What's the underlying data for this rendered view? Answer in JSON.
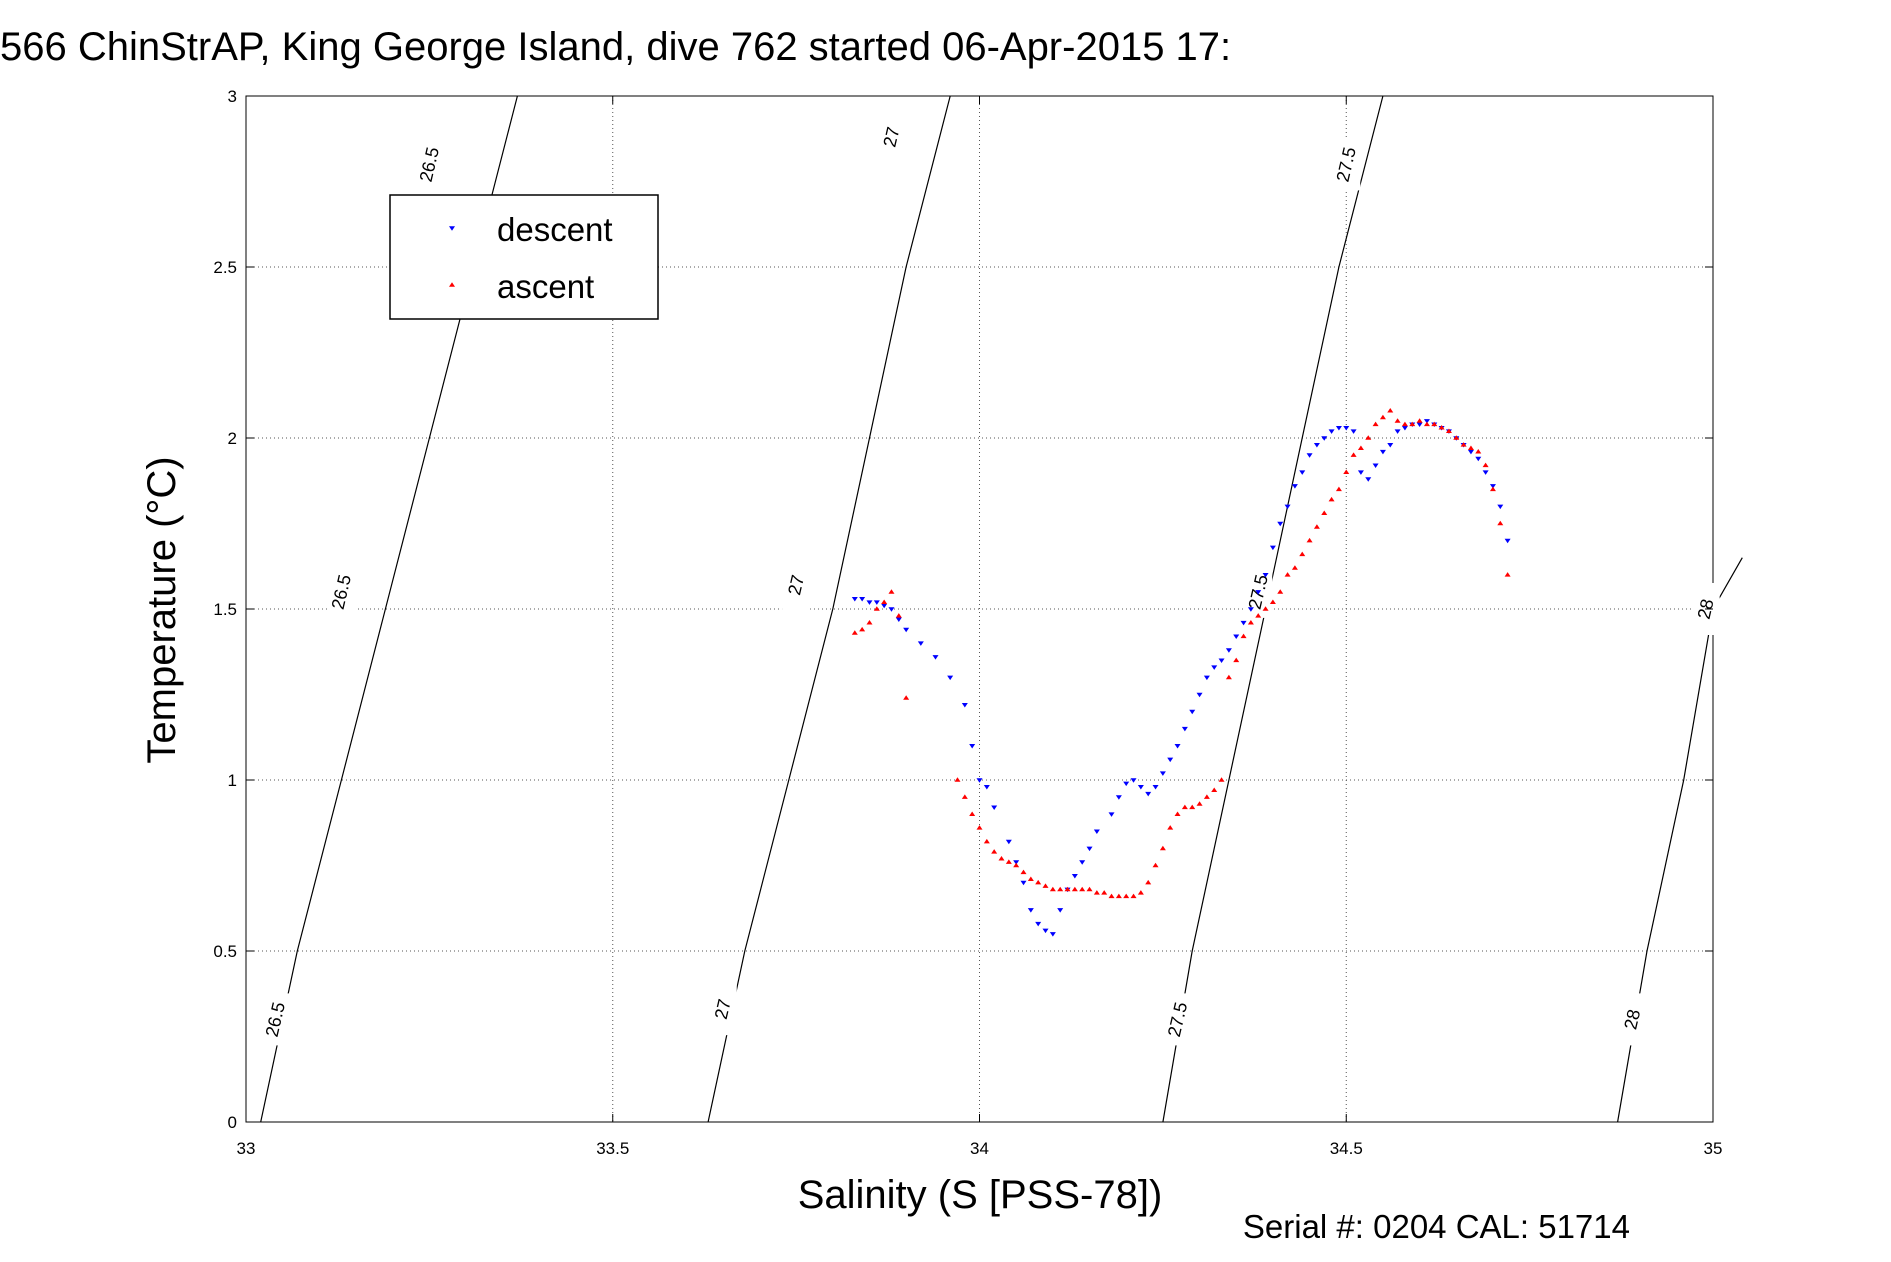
{
  "chart_data": {
    "type": "scatter",
    "title": "566 ChinStrAP, King George Island, dive 762 started 06-Apr-2015 17:",
    "xlabel": "Salinity (S [PSS-78])",
    "ylabel": "Temperature (°C)",
    "xlim": [
      33,
      35
    ],
    "ylim": [
      0,
      3
    ],
    "xticks": [
      33,
      33.5,
      34,
      34.5,
      35
    ],
    "xtick_labels": [
      "33",
      "33.5",
      "34",
      "34.5",
      "35"
    ],
    "yticks": [
      0,
      0.5,
      1,
      1.5,
      2,
      2.5,
      3
    ],
    "ytick_labels": [
      "0",
      "0.5",
      "1",
      "1.5",
      "2",
      "2.5",
      "3"
    ],
    "grid": true,
    "legend_position": "top-left",
    "footer": "Serial #: 0204  CAL: 51714",
    "series": [
      {
        "name": "descent",
        "color": "#0000ff",
        "marker": "triangle-down",
        "x": [
          33.83,
          33.84,
          33.85,
          33.86,
          33.87,
          33.88,
          33.89,
          33.9,
          33.92,
          33.94,
          33.96,
          33.98,
          33.99,
          34.0,
          34.01,
          34.02,
          34.04,
          34.05,
          34.06,
          34.07,
          34.08,
          34.09,
          34.1,
          34.11,
          34.12,
          34.13,
          34.14,
          34.15,
          34.16,
          34.18,
          34.19,
          34.2,
          34.21,
          34.22,
          34.23,
          34.24,
          34.25,
          34.26,
          34.27,
          34.28,
          34.29,
          34.3,
          34.31,
          34.32,
          34.33,
          34.34,
          34.35,
          34.36,
          34.37,
          34.38,
          34.39,
          34.4,
          34.41,
          34.42,
          34.43,
          34.44,
          34.45,
          34.46,
          34.47,
          34.48,
          34.49,
          34.5,
          34.51,
          34.52,
          34.53,
          34.54,
          34.55,
          34.56,
          34.57,
          34.58,
          34.59,
          34.6,
          34.61,
          34.62,
          34.63,
          34.64,
          34.65,
          34.66,
          34.67,
          34.68,
          34.69,
          34.7,
          34.71,
          34.72
        ],
        "y": [
          1.53,
          1.53,
          1.52,
          1.52,
          1.51,
          1.5,
          1.47,
          1.44,
          1.4,
          1.36,
          1.3,
          1.22,
          1.1,
          1.0,
          0.98,
          0.92,
          0.82,
          0.76,
          0.7,
          0.62,
          0.58,
          0.56,
          0.55,
          0.62,
          0.68,
          0.72,
          0.76,
          0.8,
          0.85,
          0.9,
          0.95,
          0.99,
          1.0,
          0.98,
          0.96,
          0.98,
          1.02,
          1.06,
          1.1,
          1.15,
          1.2,
          1.25,
          1.3,
          1.33,
          1.35,
          1.38,
          1.42,
          1.46,
          1.5,
          1.55,
          1.6,
          1.68,
          1.75,
          1.8,
          1.86,
          1.9,
          1.95,
          1.98,
          2.0,
          2.02,
          2.03,
          2.03,
          2.02,
          1.9,
          1.88,
          1.92,
          1.96,
          1.98,
          2.02,
          2.03,
          2.04,
          2.04,
          2.05,
          2.04,
          2.03,
          2.02,
          2.0,
          1.98,
          1.96,
          1.94,
          1.9,
          1.86,
          1.8,
          1.7
        ]
      },
      {
        "name": "ascent",
        "color": "#ff0000",
        "marker": "triangle-up",
        "x": [
          33.83,
          33.84,
          33.85,
          33.86,
          33.87,
          33.88,
          33.89,
          33.9,
          33.97,
          33.98,
          33.99,
          34.0,
          34.01,
          34.02,
          34.03,
          34.04,
          34.05,
          34.06,
          34.07,
          34.08,
          34.09,
          34.1,
          34.11,
          34.12,
          34.13,
          34.14,
          34.15,
          34.16,
          34.17,
          34.18,
          34.19,
          34.2,
          34.21,
          34.22,
          34.23,
          34.24,
          34.25,
          34.26,
          34.27,
          34.28,
          34.29,
          34.3,
          34.31,
          34.32,
          34.33,
          34.34,
          34.35,
          34.36,
          34.37,
          34.38,
          34.39,
          34.4,
          34.41,
          34.42,
          34.43,
          34.44,
          34.45,
          34.46,
          34.47,
          34.48,
          34.49,
          34.5,
          34.51,
          34.52,
          34.53,
          34.54,
          34.55,
          34.56,
          34.57,
          34.58,
          34.59,
          34.6,
          34.61,
          34.62,
          34.63,
          34.64,
          34.65,
          34.66,
          34.67,
          34.68,
          34.69,
          34.7,
          34.71,
          34.72
        ],
        "y": [
          1.43,
          1.44,
          1.46,
          1.5,
          1.52,
          1.55,
          1.48,
          1.24,
          1.0,
          0.95,
          0.9,
          0.86,
          0.82,
          0.79,
          0.77,
          0.76,
          0.75,
          0.73,
          0.71,
          0.7,
          0.69,
          0.68,
          0.68,
          0.68,
          0.68,
          0.68,
          0.68,
          0.67,
          0.67,
          0.66,
          0.66,
          0.66,
          0.66,
          0.67,
          0.7,
          0.75,
          0.8,
          0.86,
          0.9,
          0.92,
          0.92,
          0.93,
          0.95,
          0.97,
          1.0,
          1.3,
          1.35,
          1.42,
          1.46,
          1.48,
          1.5,
          1.52,
          1.55,
          1.6,
          1.62,
          1.66,
          1.7,
          1.74,
          1.78,
          1.82,
          1.85,
          1.9,
          1.95,
          1.97,
          2.0,
          2.04,
          2.06,
          2.08,
          2.05,
          2.04,
          2.04,
          2.05,
          2.04,
          2.04,
          2.03,
          2.02,
          2.0,
          1.98,
          1.97,
          1.96,
          1.92,
          1.85,
          1.75,
          1.6
        ]
      }
    ],
    "contours": [
      {
        "label": "26.5",
        "points": [
          [
            33.02,
            0.0
          ],
          [
            33.07,
            0.5
          ],
          [
            33.13,
            1.0
          ],
          [
            33.19,
            1.5
          ],
          [
            33.25,
            2.0
          ],
          [
            33.31,
            2.5
          ],
          [
            33.37,
            3.0
          ]
        ]
      },
      {
        "label": "27",
        "points": [
          [
            33.63,
            0.0
          ],
          [
            33.68,
            0.5
          ],
          [
            33.74,
            1.0
          ],
          [
            33.8,
            1.5
          ],
          [
            33.85,
            2.0
          ],
          [
            33.9,
            2.5
          ],
          [
            33.96,
            3.0
          ]
        ]
      },
      {
        "label": "27.5",
        "points": [
          [
            34.25,
            0.0
          ],
          [
            34.29,
            0.5
          ],
          [
            34.34,
            1.0
          ],
          [
            34.39,
            1.5
          ],
          [
            34.44,
            2.0
          ],
          [
            34.49,
            2.5
          ],
          [
            34.55,
            3.0
          ]
        ]
      },
      {
        "label": "28",
        "points": [
          [
            34.87,
            0.0
          ],
          [
            34.91,
            0.5
          ],
          [
            34.96,
            1.0
          ],
          [
            35.0,
            1.5
          ],
          [
            35.04,
            1.65
          ]
        ]
      }
    ],
    "contour_label_positions": [
      {
        "label": "26.5",
        "at": [
          33.04,
          0.3
        ]
      },
      {
        "label": "26.5",
        "at": [
          33.13,
          1.55
        ]
      },
      {
        "label": "26.5",
        "at": [
          33.25,
          2.8
        ]
      },
      {
        "label": "27",
        "at": [
          33.65,
          0.33
        ]
      },
      {
        "label": "27",
        "at": [
          33.75,
          1.57
        ]
      },
      {
        "label": "27",
        "at": [
          33.88,
          2.88
        ]
      },
      {
        "label": "27.5",
        "at": [
          34.27,
          0.3
        ]
      },
      {
        "label": "27.5",
        "at": [
          34.38,
          1.55
        ]
      },
      {
        "label": "27.5",
        "at": [
          34.5,
          2.8
        ]
      },
      {
        "label": "28",
        "at": [
          34.89,
          0.3
        ]
      },
      {
        "label": "28",
        "at": [
          34.99,
          1.5
        ]
      }
    ]
  }
}
